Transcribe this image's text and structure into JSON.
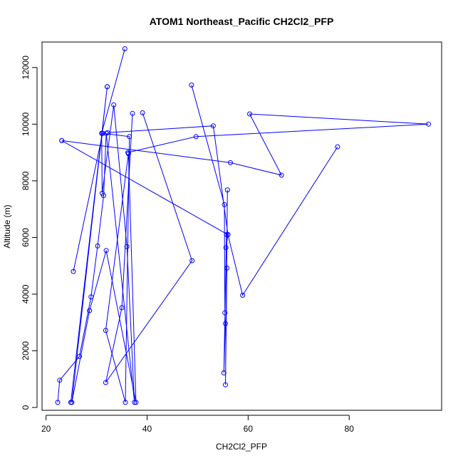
{
  "chart_data": {
    "type": "line",
    "title": "ATOM1 Northeast_Pacific CH2Cl2_PFP",
    "xlabel": "CH2Cl2_PFP",
    "ylabel": "Altitude (m)",
    "xlim": [
      19.2,
      98.3
    ],
    "ylim": [
      -100,
      12900
    ],
    "x_ticks": [
      20,
      40,
      60,
      80
    ],
    "y_ticks": [
      0,
      2000,
      4000,
      6000,
      8000,
      10000,
      12000
    ],
    "grid": false,
    "legend": "none",
    "series_color": "#0000ff",
    "series": [
      {
        "x": [
          22.3,
          22.7,
          26.6,
          28.9,
          30.2,
          31.4,
          31.9,
          37.5,
          36.0,
          33.4,
          31.1,
          31.0,
          35.6
        ],
        "y": [
          180,
          960,
          1800,
          3900,
          5700,
          7480,
          9680,
          180,
          5680,
          10680,
          7560,
          9680,
          12660
        ]
      },
      {
        "x": [
          24.9,
          32.1,
          32.1,
          25.1,
          28.6,
          31.9,
          37.8,
          36.3,
          36.3,
          31.8,
          35.7,
          36.5,
          31.2,
          25.4
        ],
        "y": [
          180,
          11320,
          11320,
          180,
          3420,
          5540,
          180,
          8960,
          8960,
          2720,
          180,
          9560,
          9680,
          4800
        ]
      },
      {
        "x": [
          37.1,
          35.0,
          31.8,
          48.9,
          39.1
        ],
        "y": [
          10380,
          3520,
          880,
          5180,
          10400
        ]
      },
      {
        "x": [
          23.1,
          56.5,
          66.6,
          60.3,
          95.7,
          49.7,
          36.2
        ],
        "y": [
          9420,
          8640,
          8200,
          10360,
          10000,
          9560,
          9000
        ]
      },
      {
        "x": [
          32.2,
          53.1,
          56.0,
          58.9,
          77.7
        ],
        "y": [
          9700,
          9940,
          6100,
          3960,
          9200
        ]
      },
      {
        "x": [
          23.1,
          56.0,
          55.6,
          55.8,
          55.5,
          55.9
        ],
        "y": [
          9420,
          6100,
          5640,
          4920,
          800,
          7680
        ]
      },
      {
        "x": [
          48.8,
          55.3,
          55.4,
          55.5,
          55.2,
          55.7
        ],
        "y": [
          11380,
          7160,
          3340,
          2960,
          1220,
          6100
        ]
      }
    ]
  }
}
